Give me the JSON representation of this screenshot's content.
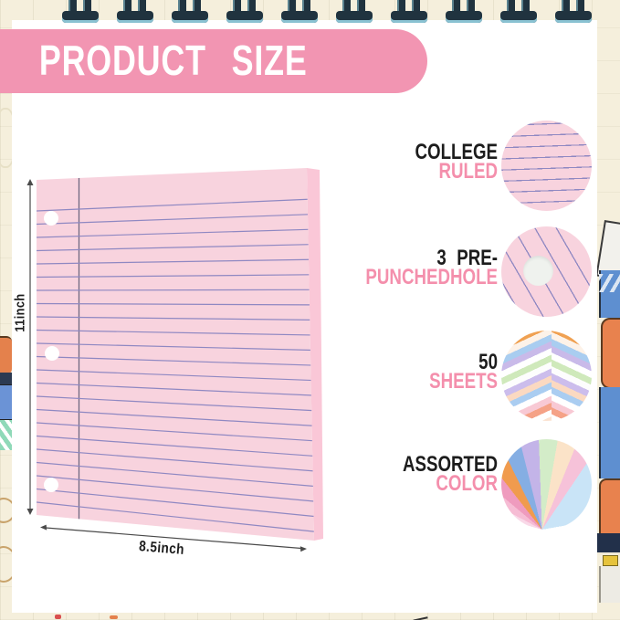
{
  "header": {
    "title": "PRODUCT SIZE"
  },
  "paper": {
    "height_label": "11inch",
    "width_label": "8.5inch",
    "hole_count": 3
  },
  "callouts": [
    {
      "line1": "COLLEGE",
      "line2": "RULED",
      "circle_icon": "college-ruled-paper-icon"
    },
    {
      "line1": "3 PRE-",
      "line2": "PUNCHEDHOLE",
      "circle_icon": "punched-hole-paper-icon"
    },
    {
      "line1": "50",
      "line2": "SHEETS",
      "circle_icon": "sheet-stack-icon",
      "circle": {
        "sheet_colors": [
          "#FFFFFF",
          "#FBE3D2",
          "#F6B97E",
          "#F0A152",
          "#FDF2E8",
          "#A9CDF0",
          "#C9BAE9",
          "#FFFFFF",
          "#CFE9BB",
          "#FDFDFD",
          "#CCBDEC",
          "#FBD9C1",
          "#AACDF1",
          "#FFFFFF",
          "#F8C9D4",
          "#F5A287"
        ]
      }
    },
    {
      "line1": "ASSORTED",
      "line2": "COLOR",
      "circle_icon": "color-fan-icon",
      "circle": {
        "fan_colors": [
          "#F9D9E8",
          "#F6BCD4",
          "#EF9BBE",
          "#F09B4E",
          "#85AEE3",
          "#C3B4E8",
          "#D3ECC8",
          "#FBE3C8",
          "#F6C2D9",
          "#C9E4F7"
        ]
      }
    }
  ],
  "colors": {
    "background_cream": "#F5EFDC",
    "canvas_white": "#FFFFFF",
    "banner_pink": "#F295B2",
    "label_pink": "#F48FAC",
    "label_black": "#1C1C1C",
    "paper_pink": "#F8D3DE",
    "paper_edge_pink": "#FAC7D7",
    "ruled_line": "#8F88C2",
    "margin_line": "#6E6880",
    "hole": "#FFFFFF",
    "arrow": "#4A4A4A",
    "ring_dark": "#20333F",
    "ring_teal": "#8AC2D2"
  }
}
